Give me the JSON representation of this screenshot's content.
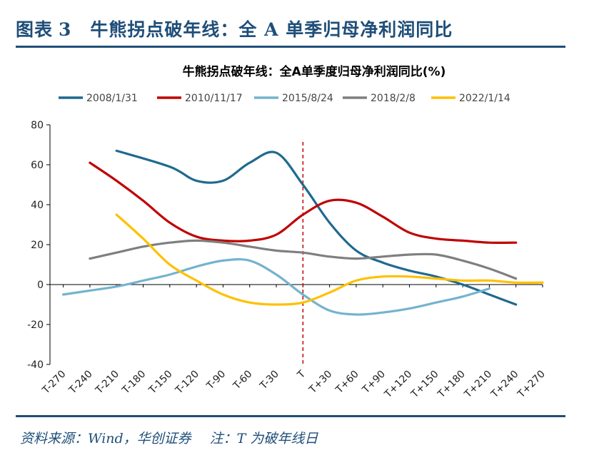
{
  "figure": {
    "label": "图表",
    "number": "3",
    "title": "牛熊拐点破年线：全 A 单季归母净利润同比",
    "source": "资料来源：Wind，华创证券",
    "note": "注：T 为破年线日"
  },
  "colors": {
    "header": "#1f4e79",
    "axis": "#000000",
    "marker_line": "#c00000"
  },
  "chart_data": {
    "type": "line",
    "title": "牛熊拐点破年线：全A单季度归母净利润同比(%)",
    "xlabel": "",
    "ylabel": "",
    "categories": [
      "T-270",
      "T-240",
      "T-210",
      "T-180",
      "T-150",
      "T-120",
      "T-90",
      "T-60",
      "T-30",
      "T",
      "T+30",
      "T+60",
      "T+90",
      "T+120",
      "T+150",
      "T+180",
      "T+210",
      "T+240",
      "T+270"
    ],
    "ylim": [
      -40,
      80
    ],
    "yticks": [
      -40,
      -20,
      0,
      20,
      40,
      60,
      80
    ],
    "legend_position": "top",
    "vertical_marker": "T",
    "series": [
      {
        "name": "2008/1/31",
        "color": "#1f6a8f",
        "x": [
          -210,
          -150,
          -120,
          -90,
          -60,
          -30,
          0,
          30,
          60,
          90,
          120,
          150,
          180,
          210,
          240
        ],
        "y": [
          67,
          59,
          52,
          52,
          61,
          66,
          50,
          31,
          17,
          11,
          7,
          4,
          0,
          -5,
          -10
        ]
      },
      {
        "name": "2010/11/17",
        "color": "#c00000",
        "x": [
          -240,
          -210,
          -180,
          -150,
          -120,
          -90,
          -60,
          -30,
          0,
          30,
          60,
          90,
          120,
          150,
          180,
          210,
          240
        ],
        "y": [
          61,
          52,
          42,
          31,
          24,
          22,
          22,
          25,
          35,
          42,
          41,
          34,
          26,
          23,
          22,
          21,
          21
        ]
      },
      {
        "name": "2015/8/24",
        "color": "#74b3ce",
        "x": [
          -270,
          -240,
          -210,
          -180,
          -150,
          -120,
          -90,
          -60,
          -30,
          0,
          30,
          60,
          90,
          120,
          150,
          180,
          210
        ],
        "y": [
          -5,
          -3,
          -1,
          2,
          5,
          9,
          12,
          12,
          5,
          -5,
          -13,
          -15,
          -14,
          -12,
          -9,
          -6,
          -2
        ]
      },
      {
        "name": "2018/2/8",
        "color": "#7f7f7f",
        "x": [
          -240,
          -210,
          -180,
          -150,
          -120,
          -90,
          -60,
          -30,
          0,
          30,
          60,
          90,
          120,
          150,
          180,
          210,
          240
        ],
        "y": [
          13,
          16,
          19,
          21,
          22,
          21,
          19,
          17,
          16,
          14,
          13,
          14,
          15,
          15,
          12,
          8,
          3
        ]
      },
      {
        "name": "2022/1/14",
        "color": "#ffc000",
        "x": [
          -210,
          -180,
          -150,
          -120,
          -90,
          -60,
          -30,
          0,
          30,
          60,
          90,
          120,
          150,
          180,
          210,
          240,
          270
        ],
        "y": [
          35,
          23,
          10,
          2,
          -5,
          -9,
          -10,
          -9,
          -4,
          2,
          4,
          4,
          3,
          2,
          2,
          1,
          1
        ]
      }
    ]
  }
}
